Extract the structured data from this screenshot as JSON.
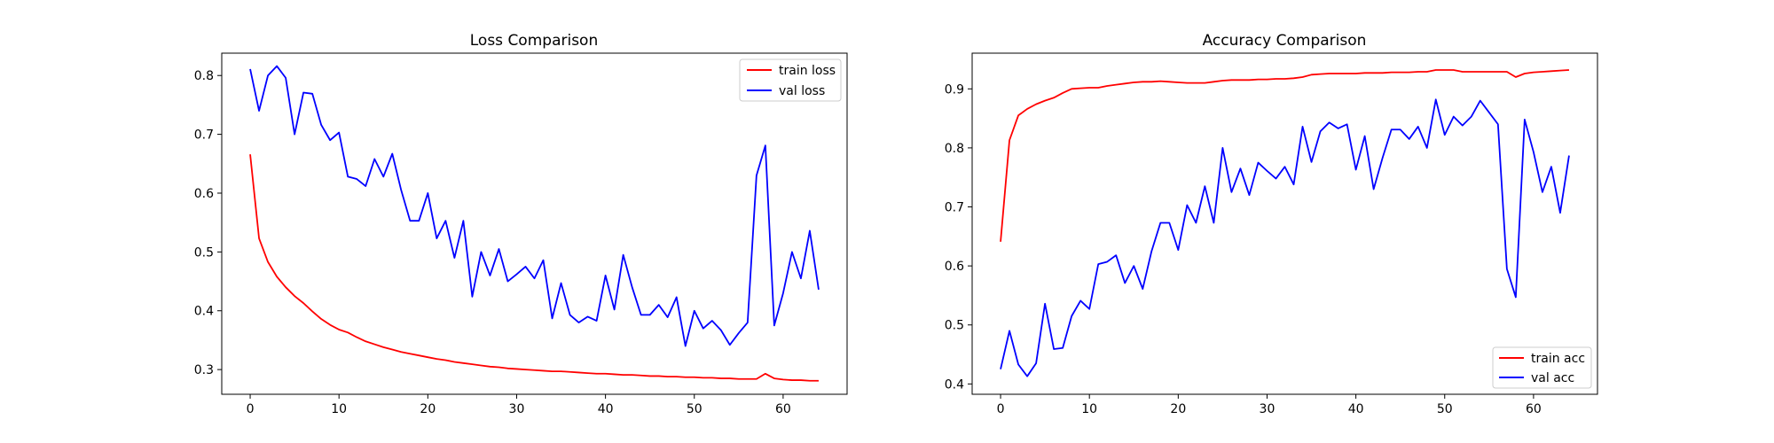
{
  "chart_data": [
    {
      "type": "line",
      "title": "Loss Comparison",
      "xlabel": "",
      "ylabel": "",
      "xlim": [
        -3.2,
        67.2
      ],
      "ylim": [
        0.258,
        0.838
      ],
      "xticks": [
        0,
        10,
        20,
        30,
        40,
        50,
        60
      ],
      "yticks": [
        0.3,
        0.4,
        0.5,
        0.6,
        0.7,
        0.8
      ],
      "ytick_labels": [
        "0.3",
        "0.4",
        "0.5",
        "0.6",
        "0.7",
        "0.8"
      ],
      "grid": false,
      "legend_position": "upper right",
      "series": [
        {
          "name": "train loss",
          "color": "#ff0000",
          "values": [
            0.666,
            0.523,
            0.483,
            0.458,
            0.44,
            0.425,
            0.413,
            0.399,
            0.386,
            0.376,
            0.368,
            0.363,
            0.355,
            0.348,
            0.343,
            0.338,
            0.334,
            0.33,
            0.327,
            0.324,
            0.321,
            0.318,
            0.316,
            0.313,
            0.311,
            0.309,
            0.307,
            0.305,
            0.304,
            0.302,
            0.301,
            0.3,
            0.299,
            0.298,
            0.297,
            0.297,
            0.296,
            0.295,
            0.294,
            0.293,
            0.293,
            0.292,
            0.291,
            0.291,
            0.29,
            0.289,
            0.289,
            0.288,
            0.288,
            0.287,
            0.287,
            0.286,
            0.286,
            0.285,
            0.285,
            0.284,
            0.284,
            0.284,
            0.293,
            0.285,
            0.283,
            0.282,
            0.282,
            0.281,
            0.281
          ]
        },
        {
          "name": "val loss",
          "color": "#0000ff",
          "values": [
            0.811,
            0.74,
            0.8,
            0.816,
            0.796,
            0.7,
            0.771,
            0.769,
            0.716,
            0.69,
            0.703,
            0.628,
            0.624,
            0.612,
            0.658,
            0.628,
            0.667,
            0.605,
            0.553,
            0.553,
            0.6,
            0.523,
            0.553,
            0.49,
            0.553,
            0.424,
            0.5,
            0.46,
            0.505,
            0.45,
            0.462,
            0.475,
            0.455,
            0.486,
            0.387,
            0.447,
            0.393,
            0.38,
            0.39,
            0.383,
            0.46,
            0.402,
            0.495,
            0.44,
            0.393,
            0.393,
            0.41,
            0.389,
            0.423,
            0.34,
            0.4,
            0.37,
            0.383,
            0.367,
            0.342,
            0.362,
            0.38,
            0.63,
            0.681,
            0.375,
            0.43,
            0.5,
            0.455,
            0.536,
            0.436
          ]
        }
      ]
    },
    {
      "type": "line",
      "title": "Accuracy Comparison",
      "xlabel": "",
      "ylabel": "",
      "xlim": [
        -3.2,
        67.2
      ],
      "ylim": [
        0.3825,
        0.9605
      ],
      "xticks": [
        0,
        10,
        20,
        30,
        40,
        50,
        60
      ],
      "yticks": [
        0.4,
        0.5,
        0.6,
        0.7,
        0.8,
        0.9
      ],
      "ytick_labels": [
        "0.4",
        "0.5",
        "0.6",
        "0.7",
        "0.8",
        "0.9"
      ],
      "grid": false,
      "legend_position": "lower right",
      "series": [
        {
          "name": "train acc",
          "color": "#ff0000",
          "values": [
            0.641,
            0.813,
            0.855,
            0.866,
            0.874,
            0.88,
            0.885,
            0.893,
            0.9,
            0.901,
            0.902,
            0.902,
            0.905,
            0.907,
            0.909,
            0.911,
            0.912,
            0.912,
            0.913,
            0.912,
            0.911,
            0.91,
            0.91,
            0.91,
            0.912,
            0.914,
            0.915,
            0.915,
            0.915,
            0.916,
            0.916,
            0.917,
            0.917,
            0.918,
            0.92,
            0.924,
            0.925,
            0.926,
            0.926,
            0.926,
            0.926,
            0.927,
            0.927,
            0.927,
            0.928,
            0.928,
            0.928,
            0.929,
            0.929,
            0.932,
            0.932,
            0.932,
            0.929,
            0.929,
            0.929,
            0.929,
            0.929,
            0.929,
            0.92,
            0.926,
            0.928,
            0.929,
            0.93,
            0.931,
            0.932
          ]
        },
        {
          "name": "val acc",
          "color": "#0000ff",
          "values": [
            0.425,
            0.49,
            0.433,
            0.413,
            0.435,
            0.536,
            0.459,
            0.461,
            0.515,
            0.541,
            0.527,
            0.603,
            0.607,
            0.618,
            0.571,
            0.6,
            0.561,
            0.625,
            0.673,
            0.673,
            0.627,
            0.703,
            0.673,
            0.735,
            0.673,
            0.8,
            0.725,
            0.765,
            0.72,
            0.775,
            0.761,
            0.748,
            0.768,
            0.738,
            0.836,
            0.776,
            0.828,
            0.843,
            0.833,
            0.84,
            0.763,
            0.82,
            0.73,
            0.783,
            0.831,
            0.831,
            0.815,
            0.836,
            0.8,
            0.882,
            0.822,
            0.853,
            0.838,
            0.853,
            0.88,
            0.86,
            0.84,
            0.595,
            0.547,
            0.848,
            0.793,
            0.725,
            0.768,
            0.69,
            0.787
          ]
        }
      ]
    }
  ]
}
